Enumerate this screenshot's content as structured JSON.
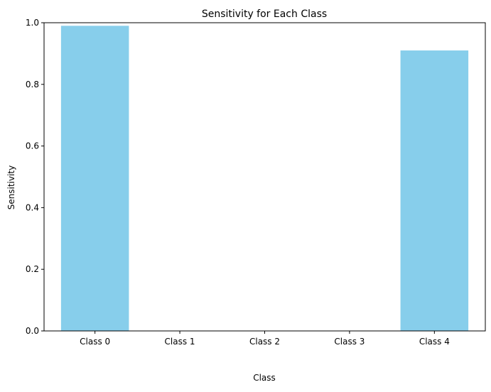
{
  "chart_data": {
    "type": "bar",
    "title": "Sensitivity for Each Class",
    "xlabel": "Class",
    "ylabel": "Sensitivity",
    "categories": [
      "Class 0",
      "Class 1",
      "Class 2",
      "Class 3",
      "Class 4"
    ],
    "values": [
      0.99,
      0.0,
      0.0,
      0.0,
      0.91
    ],
    "ylim": [
      0,
      1.0
    ],
    "yticks": [
      "0.0",
      "0.2",
      "0.4",
      "0.6",
      "0.8",
      "1.0"
    ],
    "bar_color": "#87ceeb",
    "grid": false,
    "legend": "none"
  }
}
